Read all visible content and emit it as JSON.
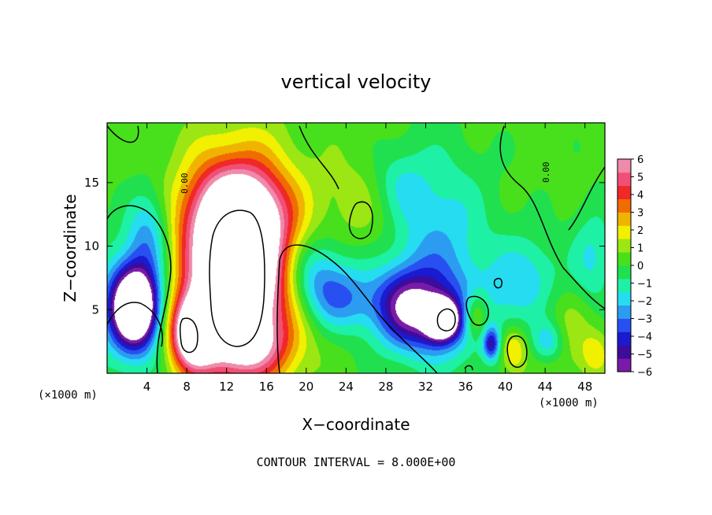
{
  "chart_data": {
    "type": "heatmap",
    "title": "vertical velocity",
    "xlabel": "X−coordinate",
    "ylabel": "Z−coordinate",
    "x_unit_label": "(×1000 m)",
    "x_unit_label_right": "(×1000 m)",
    "xlim": [
      0,
      50
    ],
    "ylim": [
      0,
      19.7
    ],
    "x_ticks": [
      4,
      8,
      12,
      16,
      20,
      24,
      28,
      32,
      36,
      40,
      44,
      48
    ],
    "x_tick_labels": [
      "4",
      "8",
      "12",
      "16",
      "20",
      "24",
      "28",
      "32",
      "36",
      "40",
      "44",
      "48"
    ],
    "y_ticks": [
      5,
      10,
      15
    ],
    "y_tick_labels": [
      "5",
      "10",
      "15"
    ],
    "colorbar": {
      "min": -6,
      "max": 6,
      "tick_values": [
        6,
        5,
        4,
        3,
        2,
        1,
        0,
        -1,
        -2,
        -3,
        -4,
        -5,
        -6
      ],
      "tick_labels": [
        "6",
        "5",
        "4",
        "3",
        "2",
        "1",
        "0",
        "−1",
        "−2",
        "−3",
        "−4",
        "−5",
        "−6"
      ],
      "colors": [
        "#7a1aa8",
        "#3c0c9a",
        "#1a1ad0",
        "#2850f0",
        "#2c9cf0",
        "#26dcf0",
        "#1ef0a6",
        "#20e050",
        "#48e01c",
        "#9ce614",
        "#f0f000",
        "#f0b400",
        "#f06c00",
        "#f02828",
        "#f05078",
        "#f08aaa"
      ]
    },
    "zero_contour_label": "0.00",
    "footer": "CONTOUR INTERVAL = 8.000E+00",
    "features": [
      {
        "kind": "updraft",
        "x": 13.2,
        "z": 8.3,
        "sx": 3.8,
        "sz": 5.2,
        "w": 11
      },
      {
        "kind": "updraft",
        "x": 13.0,
        "z": 12.8,
        "sx": 3.2,
        "sz": 2.4,
        "w": 3.6
      },
      {
        "kind": "updraft",
        "x": 8.6,
        "z": 3.2,
        "sx": 1.6,
        "sz": 2.0,
        "w": 7.5
      },
      {
        "kind": "updraft",
        "x": 14.0,
        "z": 2.0,
        "sx": 3.0,
        "sz": 1.6,
        "w": 3.0
      },
      {
        "kind": "updraft",
        "x": 37.0,
        "z": 4.5,
        "sx": 0.9,
        "sz": 1.3,
        "w": 3.0
      },
      {
        "kind": "updraft",
        "x": 40.8,
        "z": 1.8,
        "sx": 0.9,
        "sz": 1.2,
        "w": 2.4
      },
      {
        "kind": "updraft",
        "x": 45.5,
        "z": 3.5,
        "sx": 2.5,
        "sz": 2.5,
        "w": 1.4
      },
      {
        "kind": "updraft",
        "x": 49.0,
        "z": 1.5,
        "sx": 1.0,
        "sz": 1.2,
        "w": 1.6
      },
      {
        "kind": "updraft",
        "x": 26.5,
        "z": 13.5,
        "sx": 3.0,
        "sz": 3.0,
        "w": 1.2
      },
      {
        "kind": "downdraft",
        "x": 2.8,
        "z": 5.2,
        "sx": 1.5,
        "sz": 2.0,
        "w": -9
      },
      {
        "kind": "downdraft",
        "x": 2.5,
        "z": 5.2,
        "sx": 2.8,
        "sz": 3.4,
        "w": -3.4
      },
      {
        "kind": "downdraft",
        "x": 4.2,
        "z": 11.0,
        "sx": 1.5,
        "sz": 2.5,
        "w": -2.6
      },
      {
        "kind": "downdraft",
        "x": 33.6,
        "z": 4.2,
        "sx": 1.1,
        "sz": 1.0,
        "w": -9
      },
      {
        "kind": "downdraft",
        "x": 33.0,
        "z": 4.5,
        "sx": 3.6,
        "sz": 2.6,
        "w": -3.6
      },
      {
        "kind": "downdraft",
        "x": 30.0,
        "z": 5.3,
        "sx": 2.2,
        "sz": 2.0,
        "w": -3.8
      },
      {
        "kind": "downdraft",
        "x": 33.0,
        "z": 11.0,
        "sx": 3.6,
        "sz": 4.5,
        "w": -2.4
      },
      {
        "kind": "downdraft",
        "x": 20.5,
        "z": 8.0,
        "sx": 2.5,
        "sz": 2.2,
        "w": -3.0
      },
      {
        "kind": "downdraft",
        "x": 23.5,
        "z": 5.8,
        "sx": 2.6,
        "sz": 1.8,
        "w": -2.7
      },
      {
        "kind": "downdraft",
        "x": 38.6,
        "z": 2.3,
        "sx": 0.6,
        "sz": 0.9,
        "w": -4.2
      },
      {
        "kind": "downdraft",
        "x": 42.2,
        "z": 7.0,
        "sx": 2.6,
        "sz": 2.6,
        "w": -2.4
      },
      {
        "kind": "downdraft",
        "x": 44.3,
        "z": 2.5,
        "sx": 1.2,
        "sz": 1.2,
        "w": -2.8
      },
      {
        "kind": "downdraft",
        "x": 48.8,
        "z": 9.0,
        "sx": 1.5,
        "sz": 3.0,
        "w": -1.8
      },
      {
        "kind": "downdraft",
        "x": 29.0,
        "z": 15.0,
        "sx": 2.0,
        "sz": 2.0,
        "w": -1.5
      }
    ]
  }
}
